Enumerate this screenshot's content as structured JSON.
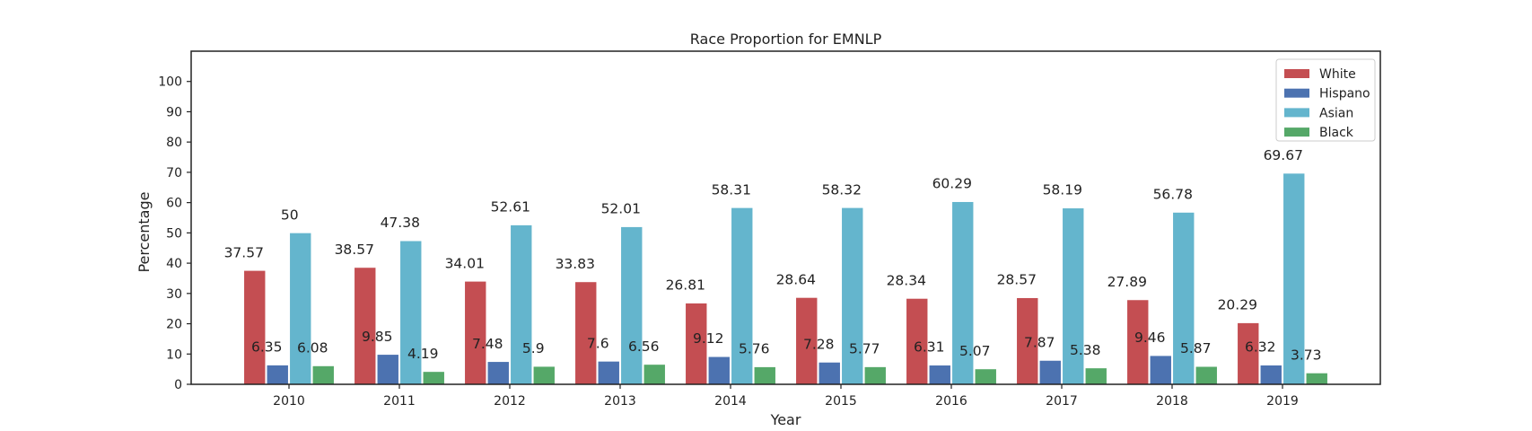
{
  "chart_data": {
    "type": "bar",
    "title": "Race Proportion for EMNLP",
    "xlabel": "Year",
    "ylabel": "Percentage",
    "ylim": [
      0,
      110
    ],
    "yticks": [
      0,
      10,
      20,
      30,
      40,
      50,
      60,
      70,
      80,
      90,
      100
    ],
    "grid": false,
    "legend_position": "top-right",
    "categories": [
      "2010",
      "2011",
      "2012",
      "2013",
      "2014",
      "2015",
      "2016",
      "2017",
      "2018",
      "2019"
    ],
    "series": [
      {
        "name": "White",
        "color": "#c44e52",
        "values": [
          37.57,
          38.57,
          34.01,
          33.83,
          26.81,
          28.64,
          28.34,
          28.57,
          27.89,
          20.29
        ]
      },
      {
        "name": "Hispano",
        "color": "#4c72b0",
        "values": [
          6.35,
          9.85,
          7.48,
          7.6,
          9.12,
          7.28,
          6.31,
          7.87,
          9.46,
          6.32
        ]
      },
      {
        "name": "Asian",
        "color": "#64b5cd",
        "values": [
          50.0,
          47.38,
          52.61,
          52.01,
          58.31,
          58.32,
          60.29,
          58.19,
          56.78,
          69.67
        ]
      },
      {
        "name": "Black",
        "color": "#55a868",
        "values": [
          6.08,
          4.19,
          5.9,
          6.56,
          5.76,
          5.77,
          5.07,
          5.38,
          5.87,
          3.73
        ]
      }
    ]
  }
}
